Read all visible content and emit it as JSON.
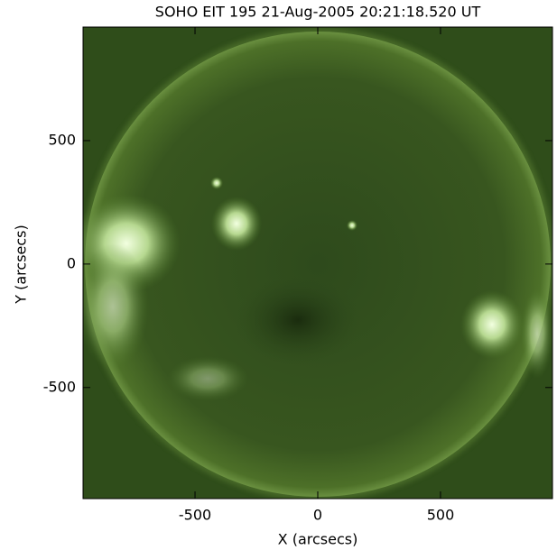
{
  "chart_data": {
    "type": "image",
    "title": "SOHO EIT 195 21-Aug-2005 20:21:18.520 UT",
    "x_label": "X (arcsecs)",
    "y_label": "Y (arcsecs)",
    "xlim": [
      -956,
      956
    ],
    "ylim": [
      -950,
      960
    ],
    "xticks": [
      -500,
      0,
      500
    ],
    "yticks": [
      -500,
      0,
      500
    ]
  }
}
